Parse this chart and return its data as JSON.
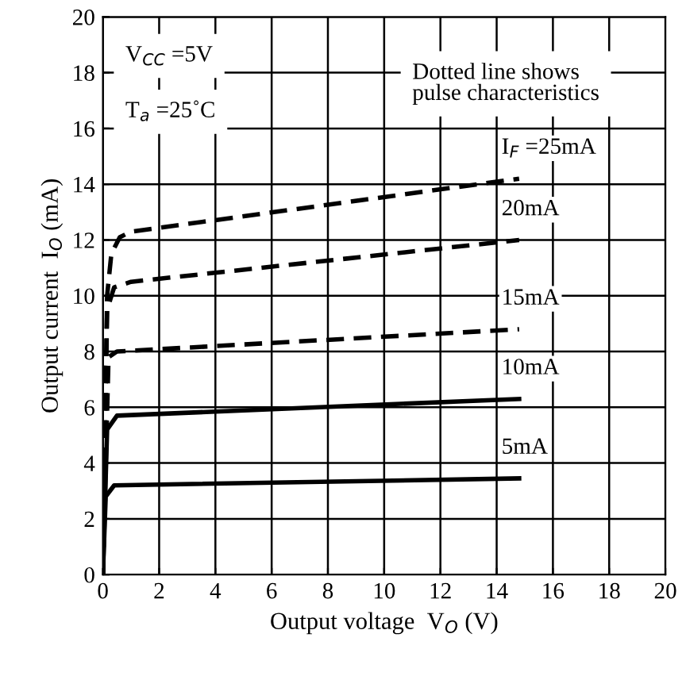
{
  "chart_data": {
    "type": "line",
    "xlabel": "Output voltage  V$_{O}$ (V)",
    "ylabel": "Output current  I$_{O}$ (mA)",
    "xlim": [
      0,
      20
    ],
    "ylim": [
      0,
      20
    ],
    "xticks": [
      0,
      2,
      4,
      6,
      8,
      10,
      12,
      14,
      16,
      18,
      20
    ],
    "yticks": [
      0,
      2,
      4,
      6,
      8,
      10,
      12,
      14,
      16,
      18,
      20
    ],
    "grid": true,
    "marker": "none",
    "legend": false,
    "annotations": [
      "V$_{CC}$ =5V",
      "T$_{a}$ =25˚C",
      "Dotted line shows\npulse characteristics"
    ],
    "series": [
      {
        "name": "I$_{F}$ =25mA",
        "color": "#000000",
        "line_style": "dashed",
        "x": [
          0,
          0.15,
          0.3,
          0.6,
          1,
          14.8
        ],
        "values": [
          0,
          10,
          11.5,
          12.1,
          12.3,
          14.2
        ]
      },
      {
        "name": "20mA",
        "color": "#000000",
        "line_style": "dashed",
        "x": [
          0,
          0.15,
          0.4,
          1,
          14.8
        ],
        "values": [
          0,
          9.5,
          10.3,
          10.5,
          12.0
        ]
      },
      {
        "name": "15mA",
        "color": "#000000",
        "line_style": "dashed",
        "x": [
          0,
          0.2,
          0.5,
          14.8
        ],
        "values": [
          0,
          7.8,
          8.0,
          8.8
        ]
      },
      {
        "name": "10mA",
        "color": "#000000",
        "line_style": "solid",
        "x": [
          0,
          0.15,
          0.5,
          14.8
        ],
        "values": [
          0,
          5.2,
          5.7,
          6.3
        ]
      },
      {
        "name": "5mA",
        "color": "#000000",
        "line_style": "solid",
        "x": [
          0,
          0.1,
          0.4,
          14.8
        ],
        "values": [
          0,
          2.8,
          3.2,
          3.45
        ]
      }
    ]
  }
}
